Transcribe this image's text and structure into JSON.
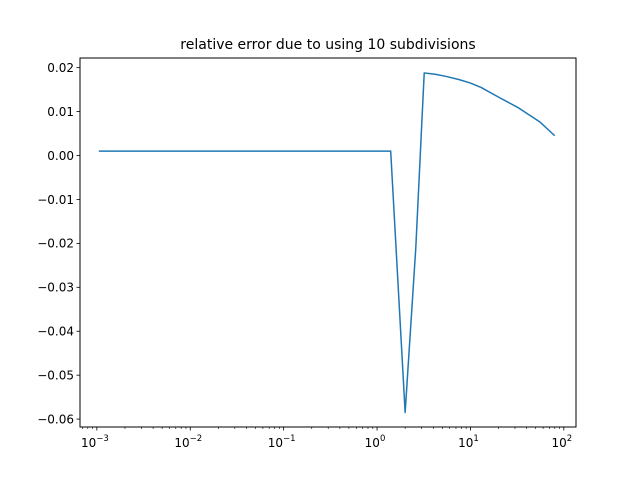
{
  "chart_data": {
    "type": "line",
    "title": "relative error due to using 10 subdivisions",
    "xlabel": "",
    "ylabel": "",
    "xscale": "log",
    "xlim": [
      0.00066,
      135
    ],
    "ylim": [
      -0.0618,
      0.0222
    ],
    "grid": false,
    "line_color": "#1f77b4",
    "x_ticks": [
      {
        "base": "10",
        "exp": "−3",
        "value": 0.001
      },
      {
        "base": "10",
        "exp": "−2",
        "value": 0.01
      },
      {
        "base": "10",
        "exp": "−1",
        "value": 0.1
      },
      {
        "base": "10",
        "exp": "0",
        "value": 1
      },
      {
        "base": "10",
        "exp": "1",
        "value": 10
      },
      {
        "base": "10",
        "exp": "2",
        "value": 100
      }
    ],
    "y_ticks": [
      {
        "label": "0.02",
        "value": 0.02
      },
      {
        "label": "0.01",
        "value": 0.01
      },
      {
        "label": "0.00",
        "value": 0.0
      },
      {
        "label": "−0.01",
        "value": -0.01
      },
      {
        "label": "−0.02",
        "value": -0.02
      },
      {
        "label": "−0.03",
        "value": -0.03
      },
      {
        "label": "−0.04",
        "value": -0.04
      },
      {
        "label": "−0.05",
        "value": -0.05
      },
      {
        "label": "−0.06",
        "value": -0.06
      }
    ],
    "series": [
      {
        "x": [
          0.00105,
          0.01,
          0.1,
          0.5,
          1.0,
          1.4,
          2.0,
          2.6,
          3.2,
          4.2,
          5.5,
          7.5,
          10,
          13,
          20,
          33,
          55,
          80
        ],
        "y": [
          0.001,
          0.001,
          0.001,
          0.001,
          0.001,
          0.001,
          -0.0585,
          -0.021,
          0.0188,
          0.0185,
          0.018,
          0.0173,
          0.0165,
          0.0155,
          0.0133,
          0.0108,
          0.0077,
          0.0045
        ]
      }
    ]
  }
}
